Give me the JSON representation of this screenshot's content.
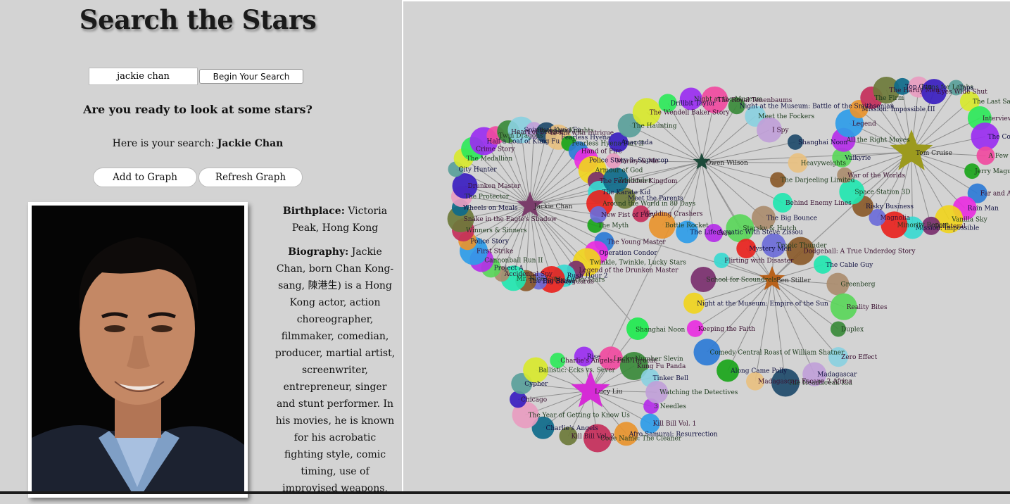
{
  "app": {
    "title": "Search the Stars",
    "prompt": "Are you ready to look at some stars?",
    "search_prefix": "Here is your search:",
    "search_name": "Jackie Chan"
  },
  "search": {
    "value": "jackie chan",
    "button_label": "Begin Your Search"
  },
  "actions": {
    "add_label": "Add to Graph",
    "refresh_label": "Refresh Graph"
  },
  "bio": {
    "birthplace_label": "Birthplace:",
    "birthplace": "Victoria Peak, Hong Kong",
    "biography_label": "Biography:",
    "biography": "Jackie Chan, born Chan Kong-sang, 陳港生) is a Hong Kong actor, action choreographer, filmmaker, comedian, producer, martial artist, screenwriter, entrepreneur, singer and stunt performer. In his movies, he is known for his acrobatic fighting style, comic timing, use of improvised weapons,"
  },
  "graph": {
    "actors": [
      {
        "id": "jackie-chan",
        "name": "Jackie Chan",
        "color": "#7a3d6b"
      },
      {
        "id": "owen-wilson",
        "name": "Owen Wilson",
        "color": "#1d4a3a"
      },
      {
        "id": "tom-cruise",
        "name": "Tom Cruise",
        "color": "#9c9a1e"
      },
      {
        "id": "ben-stiller",
        "name": "Ben Stiller",
        "color": "#b8621c"
      },
      {
        "id": "lucy-liu",
        "name": "Lucy Liu",
        "color": "#d62bd6"
      }
    ],
    "movies": [
      "The Myth",
      "The Young Master",
      "Operation Condor",
      "Twinkle, Twinkle, Lucky Stars",
      "Legend of the Drunken Master",
      "Rush Hour 2",
      "My Lucky Stars",
      "The Bodyguards",
      "The Big Brawl",
      "Mr. Nice Guy",
      "Accidental Spy",
      "Project A",
      "Cannonball Run II",
      "First Strike",
      "Police Story",
      "Winners & Sinners",
      "Snake in the Eagle's Shadow",
      "Wheels on Meals",
      "The Protector",
      "Drunken Master",
      "City Hunter",
      "The Medallion",
      "Crime Story",
      "Half a Loaf of Kung Fu",
      "Twin Dragons",
      "Heart of Dragon",
      "Spiritual Kung Fu",
      "Shanghai Knights",
      "To Kill with Intrigue",
      "Fearless Hyena",
      "Fearless Hyena Part II",
      "Hand of Fire",
      "Police Story 3: Supercop",
      "Armour of God",
      "The Forbidden Kingdom",
      "The Karate Kid",
      "Around the World in 80 Days",
      "New Fist of Fury",
      "The Darjeeling Limited",
      "Behind Enemy Lines",
      "The Big Bounce",
      "Starsky & Hutch",
      "Cars",
      "The Life Aquatic With Steve Zissou",
      "Bottle Rocket",
      "Wedding Crashers",
      "Meet the Parents",
      "Zoolander",
      "Marley & Me",
      "Anaconda",
      "The Haunting",
      "The Wendell Baker Story",
      "Drillbit Taylor",
      "Night at the Museum",
      "The Royal Tenenbaums",
      "Night at the Museum: Battle of the Smithsonian",
      "Meet the Fockers",
      "I Spy",
      "Shanghai Noon",
      "Heavyweights",
      "Jerry Maguire",
      "Far and Away",
      "Rain Man",
      "Vanilla Sky",
      "Collateral",
      "Mission: Impossible",
      "Minority Report",
      "Magnolia",
      "Risky Business",
      "Space Station 3D",
      "War of the Worlds",
      "Valkyrie",
      "All the Right Moves",
      "Legend",
      "Mission: Impossible III",
      "The Firm",
      "The Hardy Men",
      "Top Gun",
      "Lions for Lambs",
      "Eyes Wide Shut",
      "Taps",
      "The Last Samurai",
      "Interview with the Vampire",
      "The Color of Money",
      "A Few Good Men",
      "Duplex",
      "Zero Effect",
      "Madagascar",
      "The Heartbreak Kid",
      "Madagascar: Escape 2 Africa",
      "Along Came Polly",
      "Comedy Central Roast of William Shatner",
      "Keeping the Faith",
      "Night at the Museum: Empire of the Sun",
      "School for Scoundrels",
      "Flirting with Disaster",
      "Mystery Men",
      "Tropic Thunder",
      "Dodgeball: A True Underdog Story",
      "The Cable Guy",
      "Greenberg",
      "Reality Bites",
      "3 Needles",
      "Kill Bill Vol. 1",
      "Afro Samurai: Resurrection",
      "Code Name: The Cleaner",
      "Kill Bill Vol. 2",
      "Charlie's Angels",
      "The Year of Getting to Know Us",
      "Chicago",
      "Cypher",
      "Ballistic: Ecks vs. Sever",
      "Charlie's Angels: Full Throttle",
      "Rise",
      "Lucky Number Slevin",
      "Kung Fu Panda",
      "Tinker Bell",
      "Watching the Detectives"
    ]
  }
}
